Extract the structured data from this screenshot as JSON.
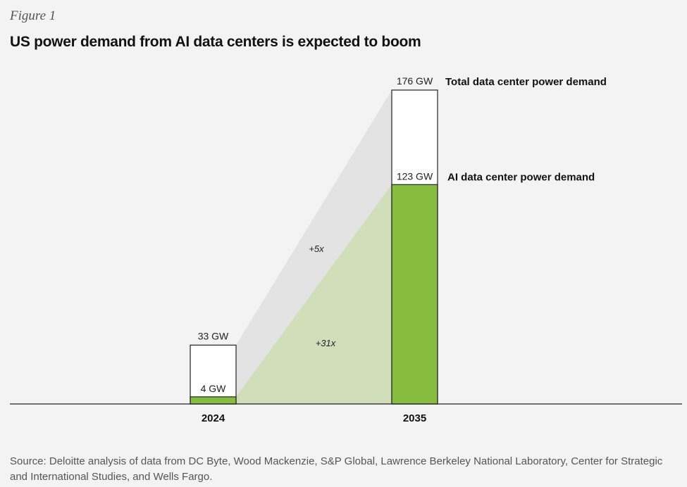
{
  "figure_label": "Figure 1",
  "chart_data": {
    "type": "bar",
    "title": "US power demand from AI data centers is expected to boom",
    "categories": [
      "2024",
      "2035"
    ],
    "unit": "GW",
    "series": [
      {
        "name": "Total data center power demand",
        "values": [
          33,
          176
        ],
        "value_labels": [
          "33 GW",
          "176 GW"
        ],
        "color": "#ffffff"
      },
      {
        "name": "AI data center power demand",
        "values": [
          4,
          123
        ],
        "value_labels": [
          "4 GW",
          "123 GW"
        ],
        "color": "#86bc3f"
      }
    ],
    "growth_annotations": [
      {
        "series": "Total data center power demand",
        "text": "+5x"
      },
      {
        "series": "AI data center power demand",
        "text": "+31x"
      }
    ],
    "colors": {
      "ai": "#86bc3f",
      "ai_band": "#d0dfba",
      "total_band": "#e3e3e3",
      "outline": "#222222"
    }
  },
  "source": "Source: Deloitte analysis of data from DC Byte, Wood Mackenzie, S&P Global, Lawrence Berkeley National Laboratory, Center for Strategic and International Studies, and Wells Fargo."
}
